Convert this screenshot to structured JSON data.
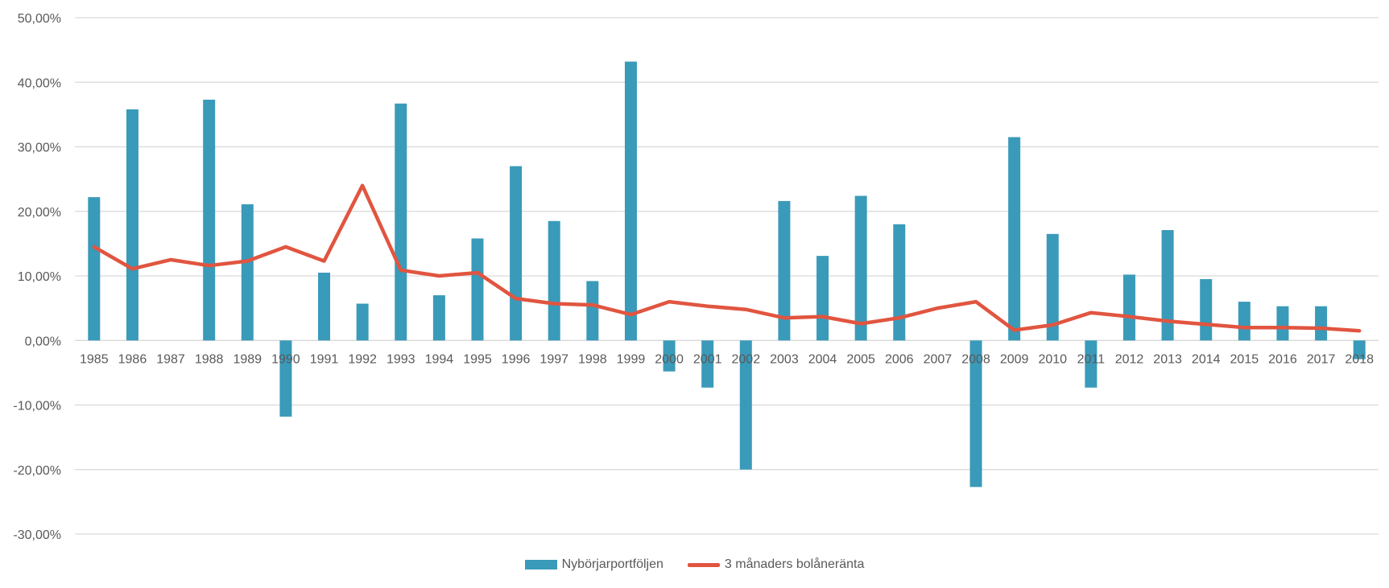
{
  "chart_data": {
    "type": "bar",
    "title": "",
    "xlabel": "",
    "ylabel": "",
    "ylim": [
      -30,
      50
    ],
    "yticks": [
      50,
      40,
      30,
      20,
      10,
      0,
      -10,
      -20,
      -30
    ],
    "ytick_labels": [
      "50,00%",
      "40,00%",
      "30,00%",
      "20,00%",
      "10,00%",
      "0,00%",
      "-10,00%",
      "-20,00%",
      "-30,00%"
    ],
    "grid": true,
    "legend_position": "bottom",
    "categories": [
      "1985",
      "1986",
      "1987",
      "1988",
      "1989",
      "1990",
      "1991",
      "1992",
      "1993",
      "1994",
      "1995",
      "1996",
      "1997",
      "1998",
      "1999",
      "2000",
      "2001",
      "2002",
      "2003",
      "2004",
      "2005",
      "2006",
      "2007",
      "2008",
      "2009",
      "2010",
      "2011",
      "2012",
      "2013",
      "2014",
      "2015",
      "2016",
      "2017",
      "2018"
    ],
    "series": [
      {
        "name": "Nybörjarportföljen",
        "type": "bar",
        "color": "#3a9ab9",
        "values": [
          22.2,
          35.8,
          0,
          37.3,
          21.1,
          -11.8,
          10.5,
          5.7,
          36.7,
          7.0,
          15.8,
          27.0,
          18.5,
          9.2,
          43.2,
          -4.8,
          -7.3,
          -20.0,
          21.6,
          13.1,
          22.4,
          18.0,
          0,
          -22.7,
          31.5,
          16.5,
          -7.3,
          10.2,
          17.1,
          9.5,
          6.0,
          5.3,
          5.3,
          -2.9
        ]
      },
      {
        "name": "3 månaders bolåneränta",
        "type": "line",
        "color": "#e15540",
        "values": [
          14.5,
          11.1,
          12.5,
          11.6,
          12.3,
          14.5,
          12.3,
          24.0,
          10.9,
          10.0,
          10.5,
          6.5,
          5.7,
          5.5,
          4.0,
          6.0,
          5.3,
          4.8,
          3.5,
          3.7,
          2.6,
          3.5,
          5.0,
          6.0,
          1.6,
          2.4,
          4.3,
          3.7,
          3.0,
          2.5,
          2.0,
          2.0,
          1.9,
          1.5
        ]
      }
    ]
  }
}
